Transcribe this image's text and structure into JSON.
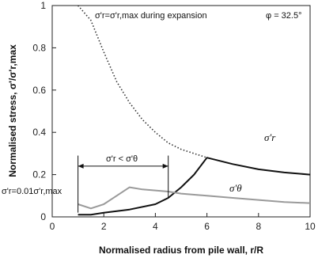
{
  "chart_data": {
    "type": "line",
    "xlabel": "Normalised radius from pile wall, r/R",
    "ylabel": "Normalised stress,  σ'/σ'r,max",
    "xlim": [
      0,
      10
    ],
    "ylim": [
      0,
      1
    ],
    "xticks": [
      "0",
      "2",
      "4",
      "6",
      "8",
      "10"
    ],
    "yticks": [
      "0",
      "0.2",
      "0.4",
      "0.6",
      "0.8",
      "1"
    ],
    "grid": false,
    "annotations": {
      "phi": "φ = 32.5°",
      "expansion": "σ'r=σ'r,max during expansion",
      "min_stress": "σ'r=0.01σ'r,max",
      "zone": "σ'r < σ'θ",
      "label_r": "σ'r",
      "label_theta": "σ'θ"
    },
    "series": [
      {
        "name": "σ'r during expansion",
        "style": "dotted",
        "color": "#333333",
        "x": [
          1.0,
          1.5,
          2.0,
          2.5,
          3.0,
          3.5,
          4.0,
          4.5,
          5.0,
          5.5,
          6.0
        ],
        "y": [
          1.0,
          0.93,
          0.78,
          0.64,
          0.54,
          0.46,
          0.4,
          0.35,
          0.32,
          0.3,
          0.28
        ]
      },
      {
        "name": "σ'r",
        "style": "solid",
        "color": "#111111",
        "x": [
          1.0,
          1.5,
          2.0,
          3.0,
          4.0,
          4.5,
          5.0,
          5.5,
          6.0,
          7.0,
          8.0,
          9.0,
          10.0
        ],
        "y": [
          0.01,
          0.01,
          0.02,
          0.035,
          0.06,
          0.09,
          0.14,
          0.2,
          0.28,
          0.25,
          0.225,
          0.21,
          0.2
        ]
      },
      {
        "name": "σ'θ",
        "style": "solid",
        "color": "#9a9a9a",
        "x": [
          1.0,
          1.5,
          2.0,
          2.5,
          3.0,
          3.5,
          4.0,
          4.5,
          5.0,
          6.0,
          7.0,
          8.0,
          9.0,
          10.0
        ],
        "y": [
          0.06,
          0.04,
          0.06,
          0.1,
          0.14,
          0.13,
          0.125,
          0.12,
          0.11,
          0.1,
          0.09,
          0.08,
          0.07,
          0.065
        ]
      }
    ],
    "zone_range": [
      1.0,
      4.5
    ]
  }
}
